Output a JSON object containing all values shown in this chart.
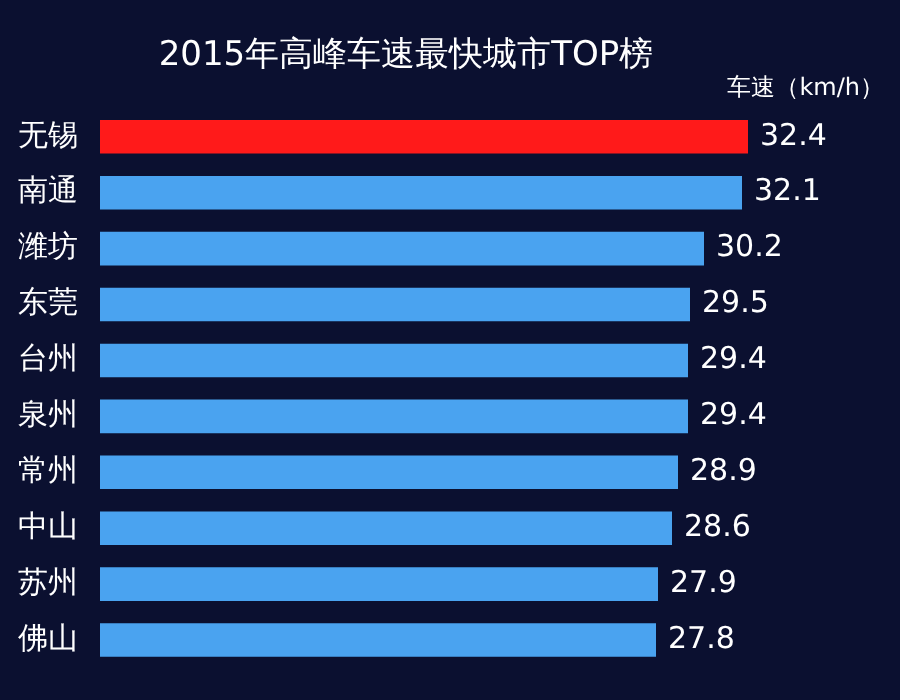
{
  "chart_data": {
    "type": "bar",
    "orientation": "horizontal",
    "title": "2015年高峰车速最快城市TOP榜",
    "annotations": [
      "车速（km/h）"
    ],
    "categories": [
      "无锡",
      "南通",
      "潍坊",
      "东莞",
      "台州",
      "泉州",
      "常州",
      "中山",
      "苏州",
      "佛山"
    ],
    "values": [
      32.4,
      32.1,
      30.2,
      29.5,
      29.4,
      29.4,
      28.9,
      28.6,
      27.9,
      27.8
    ],
    "colors": [
      "#ff1a1a",
      "#4aa3f0",
      "#4aa3f0",
      "#4aa3f0",
      "#4aa3f0",
      "#4aa3f0",
      "#4aa3f0",
      "#4aa3f0",
      "#4aa3f0",
      "#4aa3f0"
    ],
    "data_labels": true,
    "legend": false,
    "tick_labels": "y"
  }
}
